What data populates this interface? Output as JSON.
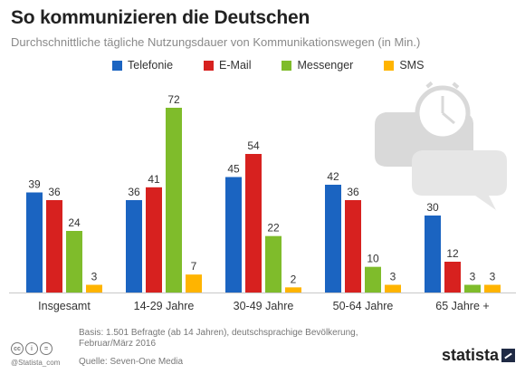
{
  "header": {
    "title": "So kommunizieren die Deutschen",
    "subtitle": "Durchschnittliche tägliche Nutzungsdauer von Kommunikationswegen (in Min.)"
  },
  "footer": {
    "basis": "Basis: 1.501 Befragte (ab 14 Jahren), deutschsprachige Bevölkerung, Februar/März 2016",
    "source": "Quelle: Seven-One Media",
    "credit": "@Statista_com",
    "brand": "statista",
    "license_icons": [
      "cc",
      "i",
      "="
    ]
  },
  "decor_icons": [
    "speech-bubbles-icon",
    "clock-icon"
  ],
  "chart_data": {
    "type": "bar",
    "categories": [
      "Insgesamt",
      "14-29 Jahre",
      "30-49 Jahre",
      "50-64 Jahre",
      "65 Jahre +"
    ],
    "series": [
      {
        "name": "Telefonie",
        "color": "#1b64c1",
        "values": [
          39,
          36,
          45,
          42,
          30
        ]
      },
      {
        "name": "E-Mail",
        "color": "#d7211f",
        "values": [
          36,
          41,
          54,
          36,
          12
        ]
      },
      {
        "name": "Messenger",
        "color": "#7fbc2b",
        "values": [
          24,
          72,
          22,
          10,
          3
        ]
      },
      {
        "name": "SMS",
        "color": "#ffb400",
        "values": [
          3,
          7,
          2,
          3,
          3
        ]
      }
    ],
    "ylim": [
      0,
      72
    ],
    "grid": false,
    "legend": "top",
    "data_labels": true
  }
}
